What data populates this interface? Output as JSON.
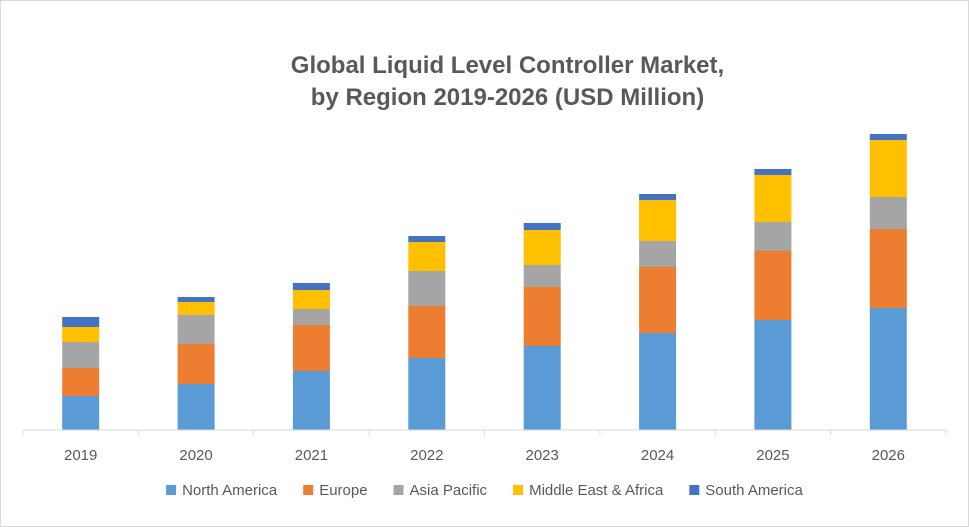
{
  "chart_data": {
    "type": "bar",
    "stacked": true,
    "title_line1": "Global Liquid Level Controller Market,",
    "title_line2": "by Region 2019-2026 (USD Million)",
    "xlabel": "",
    "ylabel": "",
    "categories": [
      "2019",
      "2020",
      "2021",
      "2022",
      "2023",
      "2024",
      "2025",
      "2026"
    ],
    "series": [
      {
        "name": "North America",
        "color": "#5b9bd5",
        "values": [
          34,
          46,
          59,
          72,
          84,
          97,
          110,
          122
        ]
      },
      {
        "name": "Europe",
        "color": "#ed7d31",
        "values": [
          28,
          40,
          46,
          52,
          59,
          66,
          69,
          79
        ]
      },
      {
        "name": "Asia Pacific",
        "color": "#a5a5a5",
        "values": [
          26,
          29,
          16,
          35,
          22,
          26,
          29,
          32
        ]
      },
      {
        "name": "Middle East & Africa",
        "color": "#ffc000",
        "values": [
          15,
          13,
          19,
          29,
          35,
          41,
          47,
          57
        ]
      },
      {
        "name": "South America",
        "color": "#4472c4",
        "values": [
          10,
          5,
          7,
          6,
          7,
          6,
          6,
          6
        ]
      }
    ],
    "ylim": [
      0,
      300
    ],
    "y_axis_visible": false,
    "grid": false,
    "legend_position": "bottom"
  }
}
